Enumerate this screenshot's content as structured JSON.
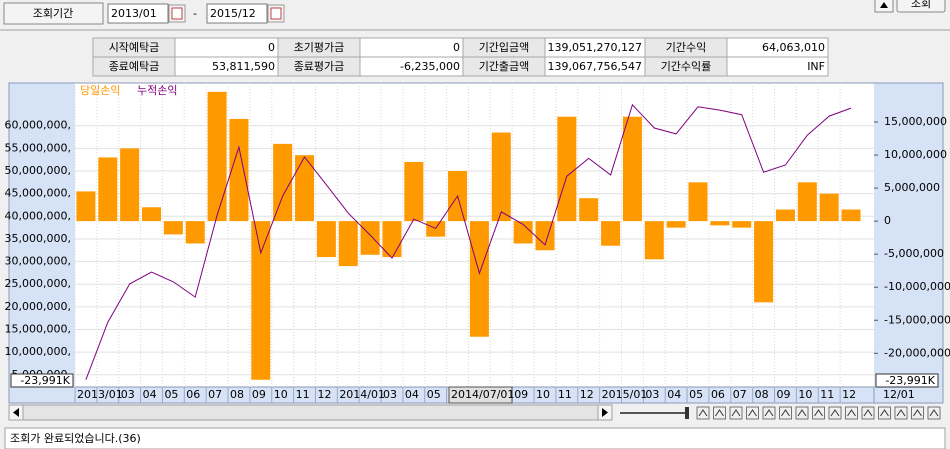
{
  "toolbar": {
    "period_label": "조회기간",
    "start": "2013/01",
    "separator": "-",
    "end": "2015/12",
    "query_button": "조회"
  },
  "summary": {
    "rows": [
      [
        "시작예탁금",
        "0",
        "초기평가금",
        "0",
        "기간입금액",
        "139,051,270,127",
        "기간수익",
        "64,063,010"
      ],
      [
        "종료예탁금",
        "53,811,590",
        "종료평가금",
        "-6,235,000",
        "기간출금액",
        "139,067,756,547",
        "기간수익률",
        "INF"
      ]
    ]
  },
  "chart_data": {
    "type": "bar",
    "categories": [
      "2013/01",
      null,
      "03",
      "04",
      "05",
      "06",
      "07",
      "08",
      "09",
      "10",
      "11",
      "12",
      "2014/01",
      null,
      "03",
      "04",
      "05",
      null,
      null,
      null,
      "09",
      "10",
      "11",
      "12",
      "2015/01",
      null,
      "03",
      "04",
      "05",
      "06",
      "07",
      "08",
      "09",
      "10",
      "11",
      "12"
    ],
    "cursor_label": "2014/07/01",
    "x_end_label": "12/01",
    "min_label": "-23,991K",
    "series": [
      {
        "name": "당일손익",
        "color": "#ff9900",
        "type": "bar",
        "values": [
          45500000,
          53000000,
          55000000,
          42000000,
          36000000,
          34000000,
          67500000,
          61500000,
          3900000,
          56000000,
          53500000,
          31000000,
          29000000,
          31500000,
          31000000,
          52000000,
          35500000,
          50000000,
          13400000,
          58500000,
          34000000,
          32500000,
          62000000,
          44000000,
          33500000,
          62000000,
          30500000,
          37500000,
          47500000,
          38000000,
          37500000,
          21000000,
          41500000,
          47500000,
          45000000,
          41500000
        ]
      },
      {
        "name": "누적손익",
        "color": "#800080",
        "type": "line",
        "axis": "y2",
        "values": [
          -23991000,
          -15300000,
          -9500000,
          -7700000,
          -9200000,
          -11500000,
          900000,
          11200000,
          -4800000,
          3800000,
          9700000,
          5500000,
          1200000,
          -2100000,
          -5600000,
          300000,
          -1100000,
          3800000,
          -7900000,
          1400000,
          -500000,
          -3600000,
          6800000,
          9500000,
          7000000,
          17600000,
          14100000,
          13200000,
          17300000,
          16800000,
          16100000,
          7400000,
          8500000,
          13000000,
          15900000,
          17100000
        ]
      }
    ],
    "ylim": [
      2300000,
      69000000
    ],
    "yticks": [
      {
        "value": 5000000,
        "label": "5,000,000,"
      },
      {
        "value": 10000000,
        "label": "10,000,000,"
      },
      {
        "value": 15000000,
        "label": "15,000,000,"
      },
      {
        "value": 20000000,
        "label": "20,000,000,"
      },
      {
        "value": 25000000,
        "label": "25,000,000,"
      },
      {
        "value": 30000000,
        "label": "30,000,000,"
      },
      {
        "value": 35000000,
        "label": "35,000,000,"
      },
      {
        "value": 40000000,
        "label": "40,000,000,"
      },
      {
        "value": 45000000,
        "label": "45,000,000,"
      },
      {
        "value": 50000000,
        "label": "50,000,000,"
      },
      {
        "value": 55000000,
        "label": "55,000,000,"
      },
      {
        "value": 60000000,
        "label": "60,000,000,"
      }
    ],
    "y2lim": [
      -25100000,
      20600000
    ],
    "y2ticks": [
      {
        "value": -20000000,
        "label": "-20,000,000"
      },
      {
        "value": -15000000,
        "label": "-15,000,000"
      },
      {
        "value": -10000000,
        "label": "-10,000,000"
      },
      {
        "value": -5000000,
        "label": "-5,000,000"
      },
      0,
      {
        "value": 5000000,
        "label": "5,000,000"
      },
      {
        "value": 10000000,
        "label": "10,000,000"
      },
      {
        "value": 15000000,
        "label": "15,000,000"
      }
    ],
    "grid": true
  },
  "status": "조회가 완료되었습니다.(36)"
}
